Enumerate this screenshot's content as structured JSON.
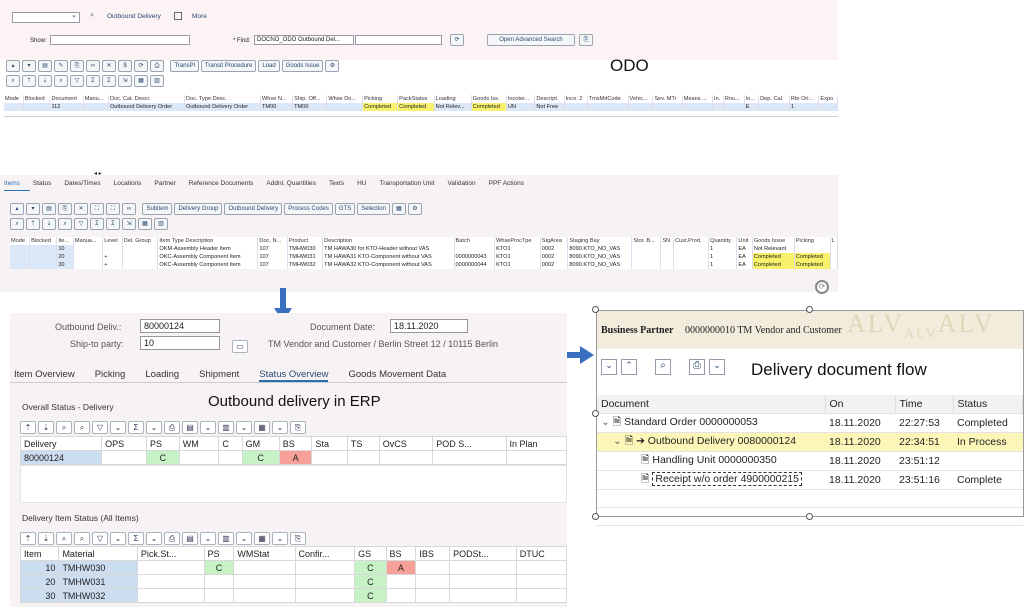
{
  "labels": {
    "odo": "ODO",
    "erp": "Outbound delivery in ERP",
    "flow": "Delivery document flow"
  },
  "odo": {
    "top": {
      "title": "Outbound Delivery",
      "more": "More",
      "show_label": "Show:",
      "find_label": "* Find:",
      "find_value": "DOCNO_ODO Outbound Del...",
      "adv_search": "Open Advanced Search"
    },
    "toolbar1": [
      "TransPl",
      "Transit Procedure",
      "Load",
      "Goods Issue"
    ],
    "headers": [
      "Mode",
      "Blocked",
      "Document",
      "Manu...",
      "Doc. Cat. Descr.",
      "Doc. Type Desc.",
      "Whse N...",
      "Ship. Off...",
      "Whse Do...",
      "Picking",
      "PackStatus",
      "Loading",
      "Goods Iss.",
      "Incoter...",
      "Descript.",
      "Inco. 2",
      "TmsMdCode",
      "Vehic...",
      "Sev. MTr",
      "Means ...",
      "In.",
      "Rou...",
      "In...",
      "Dep. Cal.",
      "Rte Ori...",
      "Expo"
    ],
    "row": [
      "",
      "",
      "112",
      "",
      "Outbound Delivery Order",
      "Outbound Delivery Order",
      "TM00",
      "TM00",
      "",
      "Completed",
      "Completed",
      "Not Relev...",
      "Completed",
      "UN",
      "Not Free",
      "",
      "",
      "",
      "",
      "",
      "",
      "",
      "E",
      "",
      "1",
      ""
    ],
    "tabs": [
      "Items",
      "Status",
      "Dates/Times",
      "Locations",
      "Partner",
      "Reference Documents",
      "Addnl. Quantities",
      "Texts",
      "HU",
      "Transportation Unit",
      "Validation",
      "PPF Actions"
    ],
    "toolbar2": [
      "Subitem",
      "Delivery Group",
      "Outbound Delivery",
      "Process Codes",
      "GTS",
      "Selection"
    ],
    "item_headers": [
      "Mode",
      "Blocked",
      "Ite...",
      "Manua...",
      "Level",
      "Del. Group",
      "Item Type Description",
      "Doc. N...",
      "Product",
      "Description",
      "Batch",
      "WhseProcTpe",
      "StgArea",
      "Staging Bay",
      "Stor. B...",
      "SN",
      "Cust.Prod.",
      "Quantity",
      "Unit",
      "Goods Issue",
      "Picking",
      "L"
    ],
    "items": [
      [
        "",
        "",
        "10",
        "",
        "",
        "",
        "OKM-Assembly Header Item",
        "107",
        "TMHW030",
        "TM HAWA30 for KTO-Header without VAS",
        "",
        "KTO1",
        "0002",
        "8090.KTO_NO_VAS",
        "",
        "",
        "",
        "1",
        "EA",
        "Not Relevant",
        "",
        ""
      ],
      [
        "",
        "",
        "20",
        "",
        "+",
        "",
        "OKC-Assembly Component Item",
        "107",
        "TMHW031",
        "TM HAWA31 KTO-Component without VAS",
        "0000000043",
        "KTO1",
        "0002",
        "8090.KTO_NO_VAS",
        "",
        "",
        "",
        "1",
        "EA",
        "Completed",
        "Completed",
        ""
      ],
      [
        "",
        "",
        "30",
        "",
        "+",
        "",
        "OKC-Assembly Component Item",
        "107",
        "TMHW032",
        "TM HAWA32 KTO-Component without VAS",
        "0000000044",
        "KTO1",
        "0002",
        "8090.KTO_NO_VAS",
        "",
        "",
        "",
        "1",
        "EA",
        "Completed",
        "Completed",
        ""
      ]
    ]
  },
  "erp": {
    "outbound_label": "Outbound Deliv.:",
    "outbound_value": "80000124",
    "date_label": "Document Date:",
    "date_value": "18.11.2020",
    "ship_label": "Ship-to party:",
    "ship_value": "10",
    "ship_text": "TM Vendor and Customer / Berlin Street 12 / 10115 Berlin",
    "tabs": [
      "Item Overview",
      "Picking",
      "Loading",
      "Shipment",
      "Status Overview",
      "Goods Movement Data"
    ],
    "overall_title": "Overall Status - Delivery",
    "overall_headers": [
      "Delivery",
      "OPS",
      "PS",
      "WM",
      "C",
      "GM",
      "BS",
      "Sta",
      "TS",
      "OvCS",
      "POD S...",
      "In Plan"
    ],
    "overall_row": [
      "80000124",
      "",
      "C",
      "",
      "",
      "C",
      "A",
      "",
      "",
      "",
      "",
      ""
    ],
    "item_title": "Delivery Item Status (All Items)",
    "item_headers": [
      "Item",
      "Material",
      "Pick.St...",
      "PS",
      "WMStat",
      "Confir...",
      "GS",
      "BS",
      "IBS",
      "PODSt...",
      "DTUC"
    ],
    "items": [
      [
        "10",
        "TMHW030",
        "",
        "C",
        "",
        "",
        "C",
        "A",
        "",
        "",
        ""
      ],
      [
        "20",
        "TMHW031",
        "",
        "",
        "",
        "",
        "C",
        "",
        "",
        "",
        ""
      ],
      [
        "30",
        "TMHW032",
        "",
        "",
        "",
        "",
        "C",
        "",
        "",
        "",
        ""
      ]
    ]
  },
  "flow": {
    "bp_label": "Business Partner",
    "bp_value": "0000000010 TM Vendor and Customer",
    "headers": [
      "Document",
      "On",
      "Time",
      "Status"
    ],
    "rows": [
      {
        "doc": "Standard Order 0000000053",
        "on": "18.11.2020",
        "time": "22:27:53",
        "status": "Completed"
      },
      {
        "doc": "Outbound Delivery 0080000124",
        "on": "18.11.2020",
        "time": "22:34:51",
        "status": "In Process"
      },
      {
        "doc": "Handling Unit 0000000350",
        "on": "18.11.2020",
        "time": "23:51:12",
        "status": ""
      },
      {
        "doc": "Receipt w/o order 4900000215",
        "on": "18.11.2020",
        "time": "23:51:16",
        "status": "Complete"
      }
    ]
  }
}
